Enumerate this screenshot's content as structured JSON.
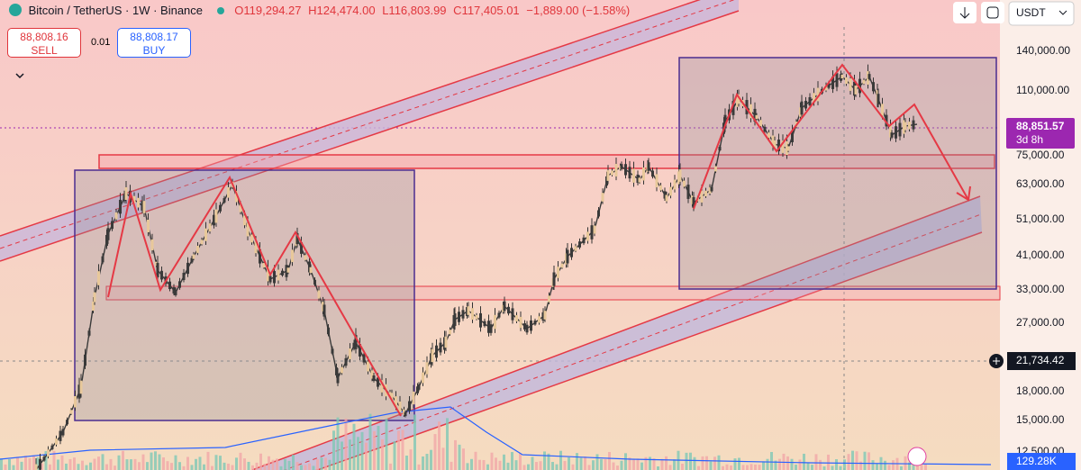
{
  "header": {
    "symbol": "Bitcoin / TetherUS · 1W · Binance",
    "open": "O119,294.27",
    "high": "H124,474.00",
    "low": "L116,803.99",
    "close": "C117,405.01",
    "change": "−1,889.00 (−1.58%)"
  },
  "trade": {
    "sell_price": "88,808.16",
    "sell_label": "SELL",
    "spread": "0.01",
    "buy_price": "88,808.17",
    "buy_label": "BUY"
  },
  "toolbar": {
    "currency": "USDT"
  },
  "price_axis": {
    "labels": [
      "140,000.00",
      "110,000.00",
      "75,000.00",
      "63,000.00",
      "51,000.00",
      "41,000.00",
      "33,000.00",
      "27,000.00",
      "18,000.00",
      "15,000.00",
      "12,500.00"
    ],
    "last_price": "88,851.57",
    "countdown": "3d 8h",
    "crosshair_price": "21,734.42",
    "volume": "129.28K"
  }
}
